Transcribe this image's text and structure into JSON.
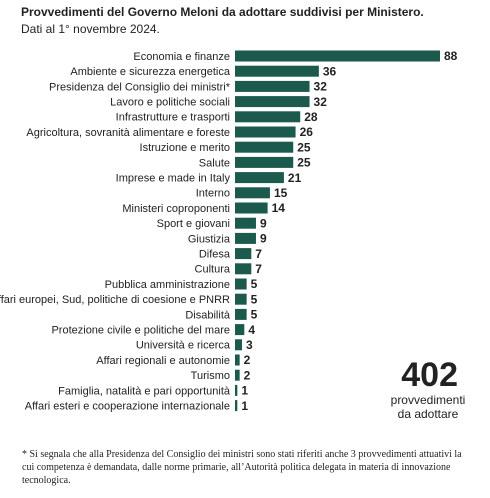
{
  "chart_data": {
    "type": "barh",
    "title": "Provvedimenti del Governo Meloni da adottare suddivisi per Ministero.",
    "subtitle": "Dati al 1° novembre 2024.",
    "categories": [
      "Economia e finanze",
      "Ambiente e sicurezza energetica",
      "Presidenza del Consiglio dei ministri*",
      "Lavoro e politiche sociali",
      "Infrastrutture e trasporti",
      "Agricoltura, sovranità alimentare e foreste",
      "Istruzione e merito",
      "Salute",
      "Imprese e made in Italy",
      "Interno",
      "Ministeri coproponenti",
      "Sport e giovani",
      "Giustizia",
      "Difesa",
      "Cultura",
      "Pubblica amministrazione",
      "Affari europei, Sud, politiche di coesione e PNRR",
      "Disabilità",
      "Protezione civile e politiche del mare",
      "Università e ricerca",
      "Affari regionali e autonomie",
      "Turismo",
      "Famiglia, natalità e pari opportunità",
      "Affari esteri e cooperazione internazionale"
    ],
    "values": [
      88,
      36,
      32,
      32,
      28,
      26,
      25,
      25,
      21,
      15,
      14,
      9,
      9,
      7,
      7,
      5,
      5,
      5,
      4,
      3,
      2,
      2,
      1,
      1
    ],
    "color": "#1b5a4d",
    "annotation": {
      "total": "402",
      "lines": [
        "provvedimenti",
        "da adottare"
      ]
    },
    "footnote": "* Si segnala che alla Presidenza del Consiglio dei ministri sono stati riferiti anche 3 provvedimenti attuativi la cui competenza è demandata, dalle norme primarie, all’Autorità politica delegata in materia di innovazione tecnologica."
  }
}
